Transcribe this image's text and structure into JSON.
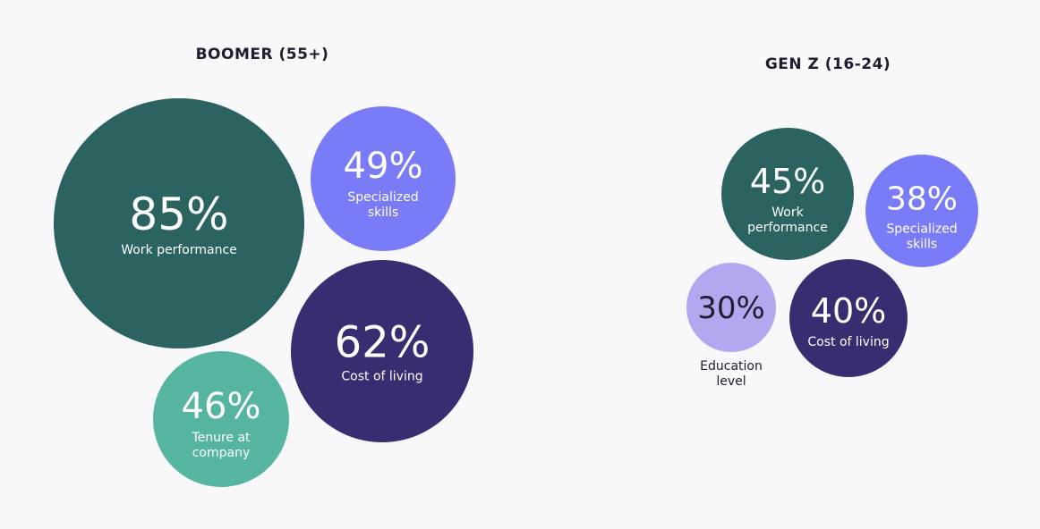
{
  "chart_data": [
    {
      "type": "bubble",
      "title": "BOOMER (55+)",
      "points": [
        {
          "value": 85,
          "value_text": "85%",
          "label": [
            "Work performance"
          ],
          "color": "#2b6360",
          "text_color": "#ffffff"
        },
        {
          "value": 49,
          "value_text": "49%",
          "label": [
            "Specialized",
            "skills"
          ],
          "color": "#7a7cf7",
          "text_color": "#ffffff"
        },
        {
          "value": 62,
          "value_text": "62%",
          "label": [
            "Cost of living"
          ],
          "color": "#3a2c70",
          "text_color": "#ffffff"
        },
        {
          "value": 46,
          "value_text": "46%",
          "label": [
            "Tenure at",
            "company"
          ],
          "color": "#55b5a0",
          "text_color": "#ffffff"
        }
      ]
    },
    {
      "type": "bubble",
      "title": "GEN Z (16-24)",
      "points": [
        {
          "value": 45,
          "value_text": "45%",
          "label": [
            "Work",
            "performance"
          ],
          "color": "#2b6360",
          "text_color": "#ffffff"
        },
        {
          "value": 38,
          "value_text": "38%",
          "label": [
            "Specialized",
            "skills"
          ],
          "color": "#7a7cf7",
          "text_color": "#ffffff"
        },
        {
          "value": 30,
          "value_text": "30%",
          "label": [
            "Education",
            "level"
          ],
          "color": "#b4a6ef",
          "text_color": "#1f1d2e"
        },
        {
          "value": 40,
          "value_text": "40%",
          "label": [
            "Cost of living"
          ],
          "color": "#3a2c70",
          "text_color": "#ffffff"
        }
      ]
    }
  ]
}
